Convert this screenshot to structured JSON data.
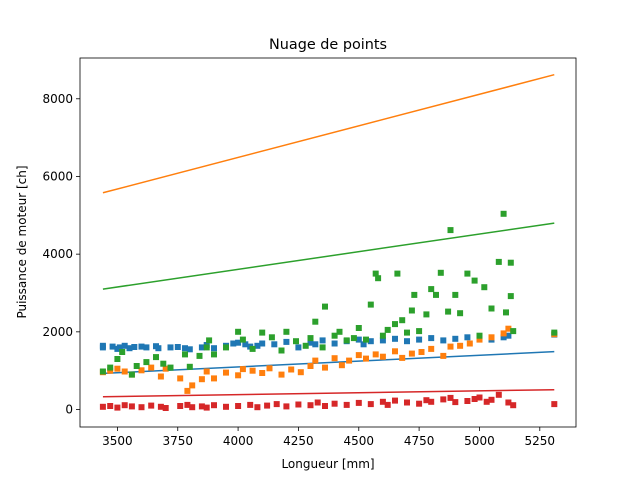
{
  "chart_data": {
    "type": "scatter",
    "title": "Nuage de points",
    "xlabel": "Longueur [mm]",
    "ylabel": "Puissance de moteur [ch]",
    "xlim": [
      3345,
      5400
    ],
    "ylim": [
      -450,
      9050
    ],
    "xticks": [
      3500,
      3750,
      4000,
      4250,
      4500,
      4750,
      5000,
      5250
    ],
    "yticks": [
      0,
      2000,
      4000,
      6000,
      8000
    ],
    "grid": false,
    "series": [
      {
        "name": "blue",
        "color": "#1f77b4",
        "points": [
          [
            3440,
            1640
          ],
          [
            3440,
            1600
          ],
          [
            3480,
            1620
          ],
          [
            3500,
            1560
          ],
          [
            3510,
            1600
          ],
          [
            3530,
            1640
          ],
          [
            3550,
            1580
          ],
          [
            3570,
            1610
          ],
          [
            3600,
            1620
          ],
          [
            3620,
            1600
          ],
          [
            3660,
            1630
          ],
          [
            3670,
            1580
          ],
          [
            3720,
            1600
          ],
          [
            3750,
            1610
          ],
          [
            3780,
            1580
          ],
          [
            3800,
            1550
          ],
          [
            3850,
            1600
          ],
          [
            3870,
            1660
          ],
          [
            3900,
            1580
          ],
          [
            3950,
            1640
          ],
          [
            3980,
            1700
          ],
          [
            4000,
            1720
          ],
          [
            4030,
            1680
          ],
          [
            4050,
            1620
          ],
          [
            4080,
            1640
          ],
          [
            4100,
            1700
          ],
          [
            4150,
            1680
          ],
          [
            4200,
            1740
          ],
          [
            4250,
            1600
          ],
          [
            4300,
            1720
          ],
          [
            4320,
            1680
          ],
          [
            4350,
            1780
          ],
          [
            4400,
            1700
          ],
          [
            4450,
            1760
          ],
          [
            4500,
            1800
          ],
          [
            4520,
            1680
          ],
          [
            4550,
            1760
          ],
          [
            4600,
            1780
          ],
          [
            4650,
            1820
          ],
          [
            4700,
            1760
          ],
          [
            4750,
            1800
          ],
          [
            4800,
            1840
          ],
          [
            4850,
            1780
          ],
          [
            4900,
            1820
          ],
          [
            4950,
            1860
          ],
          [
            5000,
            1880
          ],
          [
            5050,
            1800
          ],
          [
            5100,
            1860
          ],
          [
            5120,
            1900
          ],
          [
            5310,
            1930
          ]
        ],
        "fit": [
          [
            3440,
            930
          ],
          [
            5310,
            1490
          ]
        ]
      },
      {
        "name": "orange",
        "color": "#ff7f0e",
        "points": [
          [
            3440,
            960
          ],
          [
            3470,
            1000
          ],
          [
            3500,
            1050
          ],
          [
            3530,
            980
          ],
          [
            3560,
            900
          ],
          [
            3600,
            1010
          ],
          [
            3640,
            1080
          ],
          [
            3680,
            850
          ],
          [
            3700,
            1050
          ],
          [
            3760,
            800
          ],
          [
            3790,
            480
          ],
          [
            3810,
            620
          ],
          [
            3850,
            780
          ],
          [
            3870,
            980
          ],
          [
            3900,
            800
          ],
          [
            3950,
            950
          ],
          [
            4000,
            880
          ],
          [
            4020,
            1040
          ],
          [
            4060,
            1000
          ],
          [
            4100,
            940
          ],
          [
            4130,
            1060
          ],
          [
            4180,
            900
          ],
          [
            4220,
            1030
          ],
          [
            4260,
            960
          ],
          [
            4300,
            1120
          ],
          [
            4320,
            1260
          ],
          [
            4360,
            1080
          ],
          [
            4400,
            1320
          ],
          [
            4430,
            1140
          ],
          [
            4460,
            1260
          ],
          [
            4500,
            1400
          ],
          [
            4530,
            1310
          ],
          [
            4570,
            1420
          ],
          [
            4600,
            1360
          ],
          [
            4650,
            1500
          ],
          [
            4680,
            1330
          ],
          [
            4720,
            1440
          ],
          [
            4760,
            1480
          ],
          [
            4800,
            1560
          ],
          [
            4850,
            1380
          ],
          [
            4880,
            1620
          ],
          [
            4920,
            1640
          ],
          [
            4960,
            1700
          ],
          [
            5000,
            1800
          ],
          [
            5050,
            1860
          ],
          [
            5100,
            1960
          ],
          [
            5120,
            2080
          ],
          [
            5310,
            1940
          ]
        ],
        "fit": [
          [
            3440,
            5580
          ],
          [
            5310,
            8620
          ]
        ]
      },
      {
        "name": "green",
        "color": "#2ca02c",
        "points": [
          [
            3440,
            980
          ],
          [
            3470,
            1080
          ],
          [
            3500,
            1300
          ],
          [
            3520,
            1480
          ],
          [
            3560,
            900
          ],
          [
            3580,
            1120
          ],
          [
            3620,
            1220
          ],
          [
            3660,
            1350
          ],
          [
            3690,
            1180
          ],
          [
            3720,
            1080
          ],
          [
            3780,
            1420
          ],
          [
            3800,
            1100
          ],
          [
            3840,
            1380
          ],
          [
            3870,
            1600
          ],
          [
            3880,
            1780
          ],
          [
            3900,
            1420
          ],
          [
            3950,
            1600
          ],
          [
            4000,
            2000
          ],
          [
            4020,
            1800
          ],
          [
            4060,
            1560
          ],
          [
            4100,
            1980
          ],
          [
            4140,
            1860
          ],
          [
            4180,
            1520
          ],
          [
            4200,
            2000
          ],
          [
            4240,
            1760
          ],
          [
            4280,
            1640
          ],
          [
            4300,
            1840
          ],
          [
            4320,
            2260
          ],
          [
            4350,
            1600
          ],
          [
            4360,
            2650
          ],
          [
            4400,
            1900
          ],
          [
            4420,
            2000
          ],
          [
            4450,
            1780
          ],
          [
            4480,
            1840
          ],
          [
            4500,
            2100
          ],
          [
            4530,
            1800
          ],
          [
            4550,
            2700
          ],
          [
            4570,
            3500
          ],
          [
            4580,
            3380
          ],
          [
            4600,
            1900
          ],
          [
            4620,
            2050
          ],
          [
            4650,
            2200
          ],
          [
            4660,
            3500
          ],
          [
            4680,
            2300
          ],
          [
            4700,
            1980
          ],
          [
            4720,
            2550
          ],
          [
            4730,
            2950
          ],
          [
            4750,
            2020
          ],
          [
            4780,
            2450
          ],
          [
            4800,
            3100
          ],
          [
            4820,
            2950
          ],
          [
            4840,
            3520
          ],
          [
            4870,
            2520
          ],
          [
            4880,
            4620
          ],
          [
            4900,
            2950
          ],
          [
            4920,
            2480
          ],
          [
            4950,
            3500
          ],
          [
            4980,
            3320
          ],
          [
            5000,
            1900
          ],
          [
            5020,
            3150
          ],
          [
            5050,
            2600
          ],
          [
            5080,
            3800
          ],
          [
            5100,
            5040
          ],
          [
            5110,
            2500
          ],
          [
            5130,
            3780
          ],
          [
            5130,
            2920
          ],
          [
            5140,
            2020
          ],
          [
            5310,
            1980
          ]
        ],
        "fit": [
          [
            3440,
            3100
          ],
          [
            5310,
            4800
          ]
        ]
      },
      {
        "name": "red",
        "color": "#d62728",
        "points": [
          [
            3440,
            70
          ],
          [
            3470,
            90
          ],
          [
            3500,
            50
          ],
          [
            3530,
            110
          ],
          [
            3560,
            80
          ],
          [
            3600,
            60
          ],
          [
            3640,
            100
          ],
          [
            3680,
            70
          ],
          [
            3700,
            40
          ],
          [
            3760,
            90
          ],
          [
            3790,
            120
          ],
          [
            3810,
            60
          ],
          [
            3850,
            80
          ],
          [
            3870,
            50
          ],
          [
            3900,
            110
          ],
          [
            3950,
            70
          ],
          [
            4000,
            90
          ],
          [
            4050,
            120
          ],
          [
            4080,
            60
          ],
          [
            4120,
            100
          ],
          [
            4160,
            140
          ],
          [
            4200,
            80
          ],
          [
            4250,
            130
          ],
          [
            4300,
            110
          ],
          [
            4330,
            180
          ],
          [
            4360,
            90
          ],
          [
            4400,
            150
          ],
          [
            4450,
            120
          ],
          [
            4500,
            170
          ],
          [
            4550,
            140
          ],
          [
            4600,
            200
          ],
          [
            4620,
            120
          ],
          [
            4650,
            230
          ],
          [
            4700,
            180
          ],
          [
            4750,
            150
          ],
          [
            4780,
            240
          ],
          [
            4800,
            200
          ],
          [
            4850,
            260
          ],
          [
            4880,
            300
          ],
          [
            4900,
            190
          ],
          [
            4950,
            220
          ],
          [
            4980,
            270
          ],
          [
            5000,
            310
          ],
          [
            5030,
            200
          ],
          [
            5050,
            250
          ],
          [
            5080,
            380
          ],
          [
            5120,
            180
          ],
          [
            5140,
            110
          ],
          [
            5310,
            140
          ]
        ],
        "fit": [
          [
            3440,
            330
          ],
          [
            5310,
            510
          ]
        ]
      }
    ]
  }
}
